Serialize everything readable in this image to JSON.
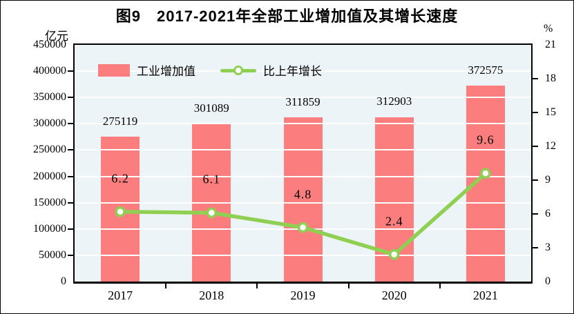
{
  "title": "图9　2017-2021年全部工业增加值及其增长速度",
  "axes": {
    "left_unit": "亿元",
    "right_unit": "%"
  },
  "legend": {
    "bar_label": "工业增加值",
    "line_label": "比上年增长"
  },
  "colors": {
    "bar": "#FB7D7D",
    "line": "#8FD053",
    "marker_fill": "#FFFFFF",
    "plot_background": "#EDF4F7",
    "gridline": "#FFFFFF",
    "text": "#000000"
  },
  "chart_data": {
    "type": "bar",
    "title": "图9　2017-2021年全部工业增加值及其增长速度",
    "categories": [
      "2017",
      "2018",
      "2019",
      "2020",
      "2021"
    ],
    "series": [
      {
        "name": "工业增加值",
        "type": "bar",
        "axis": "left",
        "unit": "亿元",
        "values": [
          275119,
          301089,
          311859,
          312903,
          372575
        ]
      },
      {
        "name": "比上年增长",
        "type": "line",
        "axis": "right",
        "unit": "%",
        "values": [
          6.2,
          6.1,
          4.8,
          2.4,
          9.6
        ]
      }
    ],
    "left_axis": {
      "label": "亿元",
      "min": 0,
      "max": 450000,
      "step": 50000
    },
    "right_axis": {
      "label": "%",
      "min": 0,
      "max": 21,
      "step": 3
    },
    "grid": true,
    "gridline_color": "#FFFFFF",
    "legend_position": "top-left-inside",
    "plot_background": "#EDF4F7"
  }
}
